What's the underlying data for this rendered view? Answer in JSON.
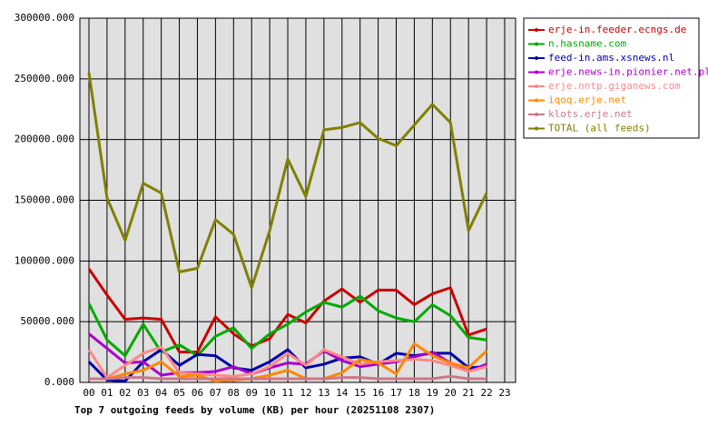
{
  "chart_data": {
    "type": "line",
    "title": "Top 7 outgoing feeds by volume (KB) per hour (20251108 2307)",
    "categories": [
      "00",
      "01",
      "02",
      "03",
      "04",
      "05",
      "06",
      "07",
      "08",
      "09",
      "10",
      "11",
      "12",
      "13",
      "14",
      "15",
      "16",
      "17",
      "18",
      "19",
      "20",
      "21",
      "22",
      "23"
    ],
    "ylim": [
      0,
      300000
    ],
    "yticks": [
      {
        "value": 0,
        "label": "0.000"
      },
      {
        "value": 50000,
        "label": "50000.000"
      },
      {
        "value": 100000,
        "label": "100000.000"
      },
      {
        "value": 150000,
        "label": "150000.000"
      },
      {
        "value": 200000,
        "label": "200000.000"
      },
      {
        "value": 250000,
        "label": "250000.000"
      },
      {
        "value": 300000,
        "label": "300000.000"
      }
    ],
    "grid": true,
    "series": [
      {
        "name": "erje-in.feeder.ecngs.de",
        "color": "#cc0000",
        "values": [
          93500,
          72000,
          52000,
          53000,
          52000,
          25000,
          25000,
          54000,
          40000,
          30000,
          36000,
          56000,
          49000,
          67000,
          77000,
          66000,
          76000,
          76000,
          64000,
          73000,
          78000,
          39000,
          44000,
          null
        ]
      },
      {
        "name": "n.hasname.com",
        "color": "#00aa00",
        "values": [
          65000,
          35000,
          22000,
          48000,
          25000,
          31000,
          22000,
          38000,
          45000,
          28000,
          40000,
          48000,
          58000,
          66000,
          62000,
          71000,
          59000,
          53000,
          50000,
          64000,
          55000,
          37000,
          35000,
          null
        ]
      },
      {
        "name": "feed-in.ams.xsnews.nl",
        "color": "#0000aa",
        "values": [
          17000,
          2000,
          1000,
          17000,
          27000,
          14000,
          23000,
          22000,
          12000,
          10000,
          17000,
          27000,
          12000,
          15000,
          20000,
          21000,
          15000,
          24000,
          22000,
          24000,
          24000,
          12000,
          13000,
          null
        ]
      },
      {
        "name": "erje.news-in.pionier.net.pl",
        "color": "#aa00cc",
        "values": [
          40000,
          28000,
          16000,
          17000,
          6000,
          8000,
          8000,
          9000,
          13000,
          7000,
          12000,
          16000,
          15000,
          26000,
          18000,
          13000,
          15000,
          17000,
          21000,
          25000,
          16000,
          9000,
          15000,
          null
        ]
      },
      {
        "name": "erje.nntp.giganews.com",
        "color": "#ff8888",
        "values": [
          27000,
          4000,
          14000,
          24000,
          29000,
          8000,
          7000,
          6000,
          5000,
          7000,
          13000,
          24000,
          14000,
          27000,
          21000,
          15000,
          17000,
          18000,
          19000,
          18000,
          14000,
          9000,
          13000,
          null
        ]
      },
      {
        "name": "iqoq.erje.net",
        "color": "#ff8800",
        "values": [
          3000,
          3000,
          7000,
          10000,
          17000,
          5000,
          6000,
          1000,
          2000,
          3000,
          6000,
          10000,
          3000,
          3000,
          8000,
          19000,
          16000,
          7000,
          32000,
          22000,
          16000,
          12000,
          26000,
          null
        ]
      },
      {
        "name": "klots.erje.net",
        "color": "#cc7788",
        "values": [
          3000,
          3000,
          4000,
          4000,
          3000,
          3000,
          3000,
          3000,
          3000,
          3000,
          3000,
          3000,
          3000,
          3000,
          4000,
          4000,
          3000,
          3000,
          3000,
          3000,
          5000,
          3000,
          3000,
          null
        ]
      },
      {
        "name": "TOTAL (all feeds)",
        "color": "#808000",
        "values": [
          255000,
          152000,
          117000,
          164000,
          156000,
          91000,
          94000,
          134000,
          122000,
          78000,
          125000,
          184000,
          153000,
          208000,
          210000,
          214000,
          201000,
          195000,
          212000,
          229000,
          214000,
          125000,
          156000,
          null
        ]
      }
    ]
  }
}
